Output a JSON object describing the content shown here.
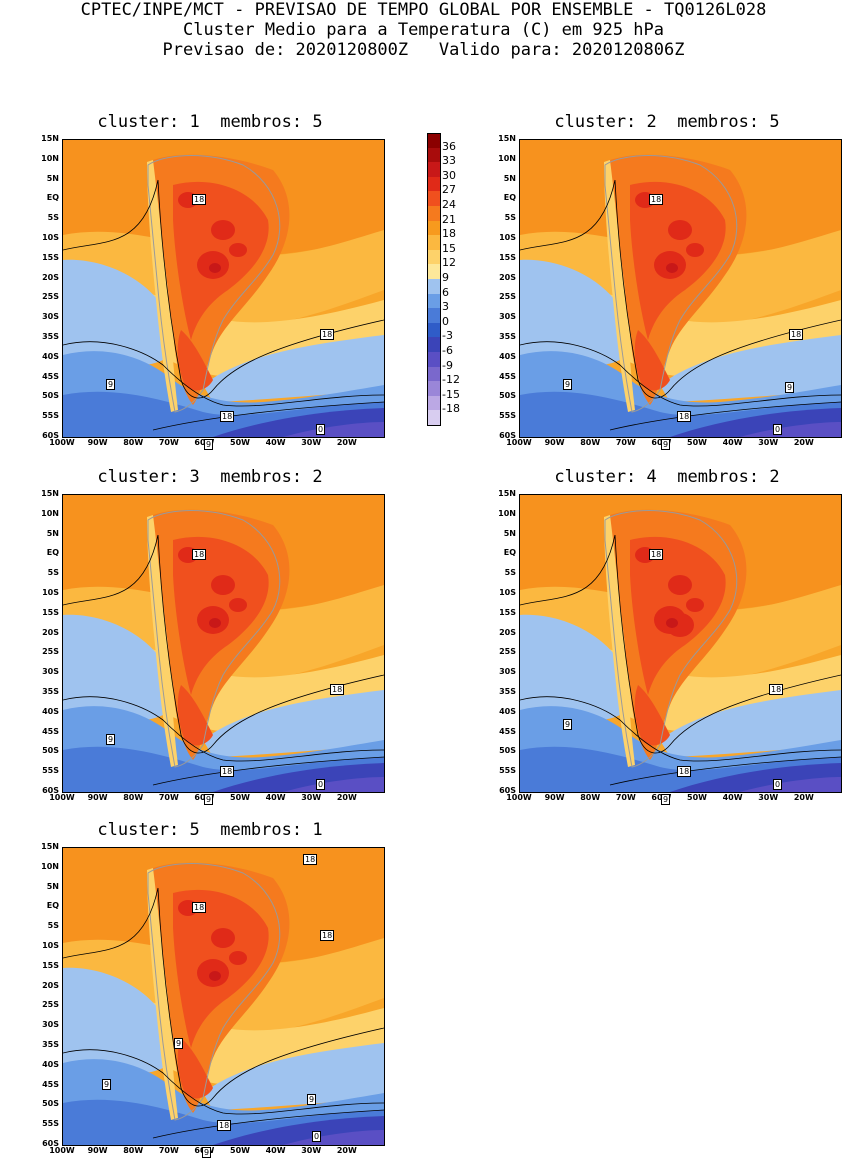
{
  "header": {
    "line1": "CPTEC/INPE/MCT - PREVISAO DE TEMPO GLOBAL POR ENSEMBLE - TQ0126L028",
    "line2": "Cluster Medio para a Temperatura (C) em 925 hPa",
    "line3": "Previsao de: 2020120800Z   Valido para: 2020120806Z"
  },
  "axes": {
    "y_labels": [
      "15N",
      "10N",
      "5N",
      "EQ",
      "5S",
      "10S",
      "15S",
      "20S",
      "25S",
      "30S",
      "35S",
      "40S",
      "45S",
      "50S",
      "55S",
      "60S"
    ],
    "x_labels": [
      "100W",
      "90W",
      "80W",
      "70W",
      "60W",
      "50W",
      "40W",
      "30W",
      "20W"
    ]
  },
  "colorbar": {
    "labels": [
      "36",
      "33",
      "30",
      "27",
      "24",
      "21",
      "18",
      "15",
      "12",
      "9",
      "6",
      "3",
      "0",
      "-3",
      "-6",
      "-9",
      "-12",
      "-15",
      "-18"
    ],
    "colors": [
      "#8b0000",
      "#a80c0c",
      "#c81818",
      "#e02a18",
      "#f0501e",
      "#f57a1e",
      "#f79a1e",
      "#fbb840",
      "#fdd26a",
      "#fde89a",
      "#9fc3ef",
      "#6a9ee6",
      "#4a7bd8",
      "#2f5cc8",
      "#3b44b8",
      "#5a4fc4",
      "#7a68cc",
      "#9a86d8",
      "#bba8e4",
      "#d8cdf0"
    ]
  },
  "panels": [
    {
      "title": "cluster: 1  membros: 5",
      "labels": [
        "18",
        "18",
        "9",
        "18",
        "9",
        "0"
      ]
    },
    {
      "title": "cluster: 2  membros: 5",
      "labels": [
        "18",
        "18",
        "9",
        "9",
        "18",
        "9",
        "0"
      ]
    },
    {
      "title": "cluster: 3  membros: 2",
      "labels": [
        "18",
        "18",
        "9",
        "18",
        "9",
        "0"
      ]
    },
    {
      "title": "cluster: 4  membros: 2",
      "labels": [
        "18",
        "18",
        "9",
        "18",
        "9",
        "0"
      ]
    },
    {
      "title": "cluster: 5  membros: 1",
      "labels": [
        "18",
        "18",
        "18",
        "9",
        "9",
        "9",
        "18",
        "9",
        "0"
      ]
    }
  ]
}
